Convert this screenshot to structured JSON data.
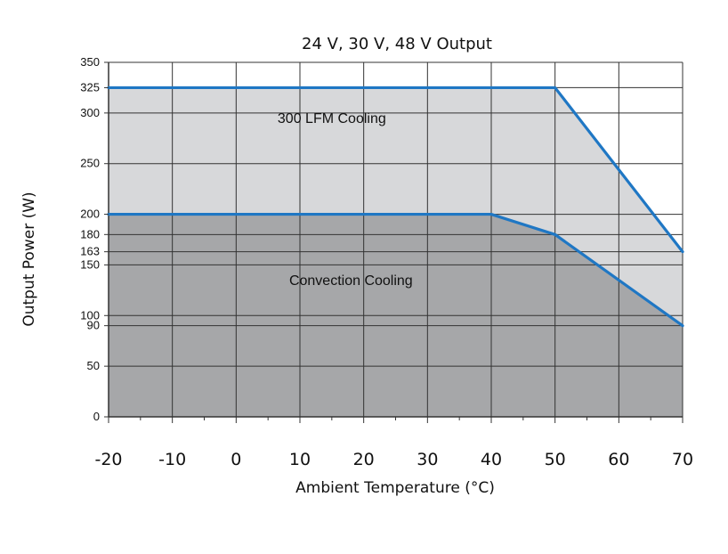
{
  "chart_data": {
    "type": "area",
    "title": "24 V, 30 V, 48 V Output",
    "xlabel": "Ambient Temperature (°C)",
    "ylabel": "Output Power (W)",
    "xlim": [
      -20,
      70
    ],
    "ylim": [
      0,
      350
    ],
    "x_ticks": [
      -20,
      -10,
      0,
      10,
      20,
      30,
      40,
      50,
      60,
      70
    ],
    "y_ticks": [
      0,
      50,
      90,
      100,
      150,
      163,
      180,
      200,
      250,
      300,
      325,
      350
    ],
    "grid": true,
    "series": [
      {
        "x": [
          -20,
          50,
          70
        ],
        "y": [
          325,
          325,
          163
        ]
      },
      {
        "x": [
          -20,
          40,
          50,
          70
        ],
        "y": [
          200,
          200,
          180,
          90
        ]
      }
    ],
    "annotations": [
      {
        "text": "300 LFM Cooling",
        "x": 15,
        "y": 290
      },
      {
        "text": "Convection Cooling",
        "x": 18,
        "y": 130
      }
    ],
    "colors": {
      "line": "#1f77c4",
      "upper_fill": "#d7d8da",
      "lower_fill": "#a6a7a9",
      "grid": "#333333",
      "text": "#111111"
    }
  }
}
